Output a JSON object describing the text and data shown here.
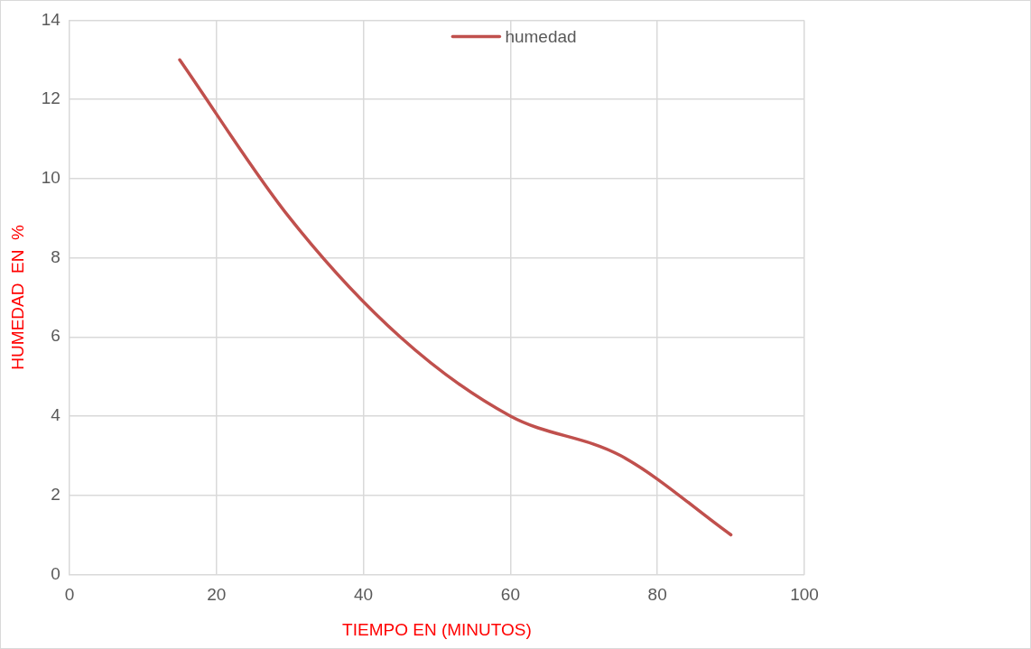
{
  "chart_data": {
    "type": "line",
    "xlabel": "TIEMPO EN (MINUTOS)",
    "ylabel": "HUMEDAD  EN  %",
    "x": [
      15,
      30,
      45,
      60,
      75,
      90
    ],
    "series": [
      {
        "name": "humedad",
        "color": "#c0504d",
        "values": [
          13,
          9,
          6,
          4,
          3,
          1
        ]
      }
    ],
    "xlim": [
      0,
      100
    ],
    "xticks": [
      0,
      20,
      40,
      60,
      80,
      100
    ],
    "ylim": [
      0,
      14
    ],
    "yticks": [
      0,
      2,
      4,
      6,
      8,
      10,
      12,
      14
    ],
    "grid": true,
    "legend": "top",
    "marker": "none",
    "line_style": "solid"
  }
}
